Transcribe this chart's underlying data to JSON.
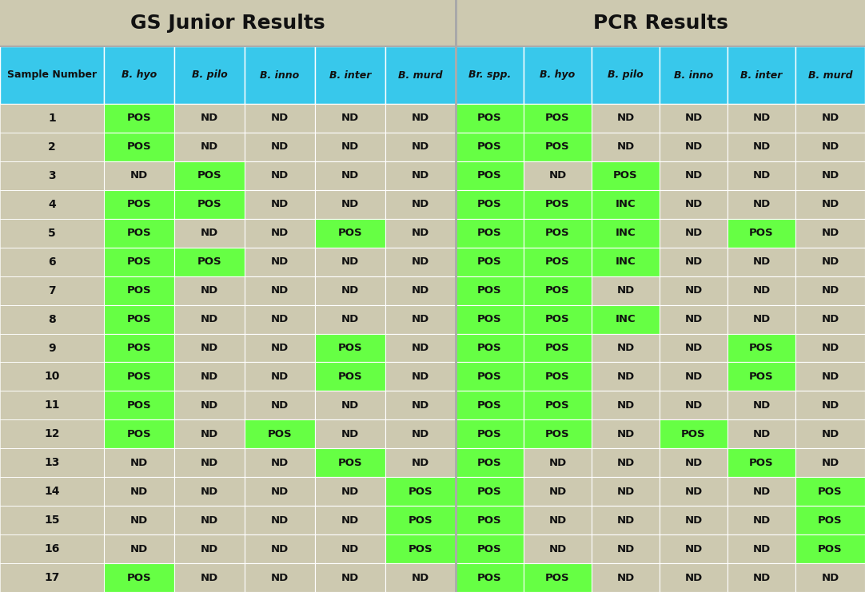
{
  "title_left": "GS Junior Results",
  "title_right": "PCR Results",
  "col_headers": [
    "Sample Number",
    "B. hyo",
    "B. pilo",
    "B. inno",
    "B. inter",
    "B. murd",
    "Br. spp.",
    "B. hyo",
    "B. pilo",
    "B. inno",
    "B. inter",
    "B. murd"
  ],
  "col_italic": [
    false,
    true,
    true,
    true,
    true,
    true,
    true,
    true,
    true,
    true,
    true,
    true
  ],
  "rows": [
    [
      1,
      "POS",
      "ND",
      "ND",
      "ND",
      "ND",
      "POS",
      "POS",
      "ND",
      "ND",
      "ND",
      "ND"
    ],
    [
      2,
      "POS",
      "ND",
      "ND",
      "ND",
      "ND",
      "POS",
      "POS",
      "ND",
      "ND",
      "ND",
      "ND"
    ],
    [
      3,
      "ND",
      "POS",
      "ND",
      "ND",
      "ND",
      "POS",
      "ND",
      "POS",
      "ND",
      "ND",
      "ND"
    ],
    [
      4,
      "POS",
      "POS",
      "ND",
      "ND",
      "ND",
      "POS",
      "POS",
      "INC",
      "ND",
      "ND",
      "ND"
    ],
    [
      5,
      "POS",
      "ND",
      "ND",
      "POS",
      "ND",
      "POS",
      "POS",
      "INC",
      "ND",
      "POS",
      "ND"
    ],
    [
      6,
      "POS",
      "POS",
      "ND",
      "ND",
      "ND",
      "POS",
      "POS",
      "INC",
      "ND",
      "ND",
      "ND"
    ],
    [
      7,
      "POS",
      "ND",
      "ND",
      "ND",
      "ND",
      "POS",
      "POS",
      "ND",
      "ND",
      "ND",
      "ND"
    ],
    [
      8,
      "POS",
      "ND",
      "ND",
      "ND",
      "ND",
      "POS",
      "POS",
      "INC",
      "ND",
      "ND",
      "ND"
    ],
    [
      9,
      "POS",
      "ND",
      "ND",
      "POS",
      "ND",
      "POS",
      "POS",
      "ND",
      "ND",
      "POS",
      "ND"
    ],
    [
      10,
      "POS",
      "ND",
      "ND",
      "POS",
      "ND",
      "POS",
      "POS",
      "ND",
      "ND",
      "POS",
      "ND"
    ],
    [
      11,
      "POS",
      "ND",
      "ND",
      "ND",
      "ND",
      "POS",
      "POS",
      "ND",
      "ND",
      "ND",
      "ND"
    ],
    [
      12,
      "POS",
      "ND",
      "POS",
      "ND",
      "ND",
      "POS",
      "POS",
      "ND",
      "POS",
      "ND",
      "ND"
    ],
    [
      13,
      "ND",
      "ND",
      "ND",
      "POS",
      "ND",
      "POS",
      "ND",
      "ND",
      "ND",
      "POS",
      "ND"
    ],
    [
      14,
      "ND",
      "ND",
      "ND",
      "ND",
      "POS",
      "POS",
      "ND",
      "ND",
      "ND",
      "ND",
      "POS"
    ],
    [
      15,
      "ND",
      "ND",
      "ND",
      "ND",
      "POS",
      "POS",
      "ND",
      "ND",
      "ND",
      "ND",
      "POS"
    ],
    [
      16,
      "ND",
      "ND",
      "ND",
      "ND",
      "POS",
      "POS",
      "ND",
      "ND",
      "ND",
      "ND",
      "POS"
    ],
    [
      17,
      "POS",
      "ND",
      "ND",
      "ND",
      "ND",
      "POS",
      "POS",
      "ND",
      "ND",
      "ND",
      "ND"
    ]
  ],
  "bg_color": "#cdc9b0",
  "header_bg": "#38c8eb",
  "title_bg": "#cdc9b0",
  "green_color": "#66ff44",
  "nd_color": "#cdc9b0",
  "text_color": "#111111",
  "divider_col": 6,
  "num_cols": 12,
  "title_fontsize": 18,
  "header_fontsize": 9,
  "data_fontsize": 9.5,
  "sample_num_fontsize": 10
}
